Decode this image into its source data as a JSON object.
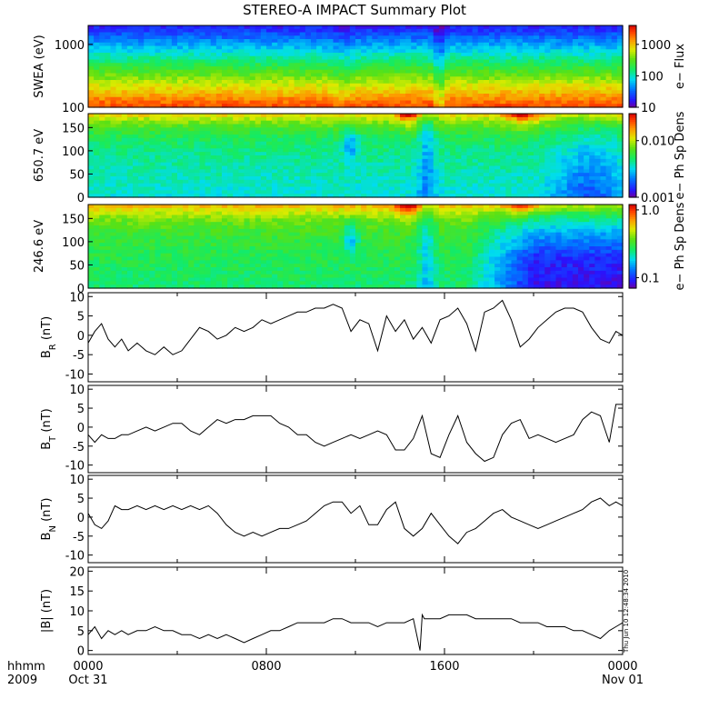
{
  "chart_data": {
    "type": "multi-panel",
    "title": "STEREO-A IMPACT Summary Plot",
    "x_axis": {
      "label_line1": "hhmm",
      "label_line2": "2009",
      "ticks": [
        {
          "time_h": 0,
          "line1": "0000",
          "line2": "Oct 31"
        },
        {
          "time_h": 8,
          "line1": "0800",
          "line2": ""
        },
        {
          "time_h": 16,
          "line1": "1600",
          "line2": ""
        },
        {
          "time_h": 24,
          "line1": "0000",
          "line2": "Nov 01"
        }
      ],
      "range_h": [
        0,
        24
      ]
    },
    "stamp": "Thu Jun 10 12:48:34 2010",
    "spectrograms": [
      {
        "type": "heatmap",
        "ylabel": "SWEA (eV)",
        "y_scale": "log",
        "ylim": [
          100,
          2000
        ],
        "yticks": [
          "100",
          "1000"
        ],
        "colorbar_label": "e− Flux",
        "colorbar_ticks": [
          "10",
          "100",
          "1000"
        ],
        "colorbar_range": [
          10,
          4000
        ],
        "colorbar_scale": "log"
      },
      {
        "type": "heatmap",
        "ylabel": "650.7 eV",
        "y_scale": "linear",
        "ylim": [
          0,
          180
        ],
        "yticks": [
          "0",
          "50",
          "100",
          "150"
        ],
        "colorbar_label": "e− Ph Sp Dens",
        "colorbar_ticks": [
          "0.001",
          "0.010"
        ],
        "colorbar_range": [
          0.001,
          0.03
        ],
        "colorbar_scale": "log"
      },
      {
        "type": "heatmap",
        "ylabel": "246.6 eV",
        "y_scale": "linear",
        "ylim": [
          0,
          180
        ],
        "yticks": [
          "0",
          "50",
          "100",
          "150"
        ],
        "colorbar_label": "e− Ph Sp Dens",
        "colorbar_ticks": [
          "0.1",
          "1.0"
        ],
        "colorbar_range": [
          0.07,
          1.2
        ],
        "colorbar_scale": "log"
      }
    ],
    "lines": [
      {
        "type": "line",
        "ylabel_main": "B",
        "ylabel_sub": "R",
        "ylabel_unit": " (nT)",
        "ylim": [
          -12,
          11
        ],
        "yticks": [
          "-10",
          "-5",
          "0",
          "5",
          "10"
        ],
        "x": [
          0,
          0.3,
          0.6,
          0.9,
          1.2,
          1.5,
          1.8,
          2.2,
          2.6,
          3.0,
          3.4,
          3.8,
          4.2,
          4.6,
          5.0,
          5.4,
          5.8,
          6.2,
          6.6,
          7.0,
          7.4,
          7.8,
          8.2,
          8.6,
          9.0,
          9.4,
          9.8,
          10.2,
          10.6,
          11.0,
          11.4,
          11.8,
          12.2,
          12.6,
          13.0,
          13.4,
          13.8,
          14.2,
          14.6,
          15.0,
          15.4,
          15.8,
          16.2,
          16.6,
          17.0,
          17.4,
          17.8,
          18.2,
          18.6,
          19.0,
          19.4,
          19.8,
          20.2,
          20.6,
          21.0,
          21.4,
          21.8,
          22.2,
          22.6,
          23.0,
          23.4,
          23.7,
          24.0
        ],
        "values": [
          -2,
          1,
          3,
          -1,
          -3,
          -1,
          -4,
          -2,
          -4,
          -5,
          -3,
          -5,
          -4,
          -1,
          2,
          1,
          -1,
          0,
          2,
          1,
          2,
          4,
          3,
          4,
          5,
          6,
          6,
          7,
          7,
          8,
          7,
          1,
          4,
          3,
          -4,
          5,
          1,
          4,
          -1,
          2,
          -2,
          4,
          5,
          7,
          3,
          -4,
          6,
          7,
          9,
          4,
          -3,
          -1,
          2,
          4,
          6,
          7,
          7,
          6,
          2,
          -1,
          -2,
          1,
          0
        ]
      },
      {
        "type": "line",
        "ylabel_main": "B",
        "ylabel_sub": "T",
        "ylabel_unit": " (nT)",
        "ylim": [
          -12,
          11
        ],
        "yticks": [
          "-10",
          "-5",
          "0",
          "5",
          "10"
        ],
        "x": [
          0,
          0.3,
          0.6,
          0.9,
          1.2,
          1.5,
          1.8,
          2.2,
          2.6,
          3.0,
          3.4,
          3.8,
          4.2,
          4.6,
          5.0,
          5.4,
          5.8,
          6.2,
          6.6,
          7.0,
          7.4,
          7.8,
          8.2,
          8.6,
          9.0,
          9.4,
          9.8,
          10.2,
          10.6,
          11.0,
          11.4,
          11.8,
          12.2,
          12.6,
          13.0,
          13.4,
          13.8,
          14.2,
          14.6,
          15.0,
          15.4,
          15.8,
          16.2,
          16.6,
          17.0,
          17.4,
          17.8,
          18.2,
          18.6,
          19.0,
          19.4,
          19.8,
          20.2,
          20.6,
          21.0,
          21.4,
          21.8,
          22.2,
          22.6,
          23.0,
          23.4,
          23.7,
          24.0
        ],
        "values": [
          -2,
          -4,
          -2,
          -3,
          -3,
          -2,
          -2,
          -1,
          0,
          -1,
          0,
          1,
          1,
          -1,
          -2,
          0,
          2,
          1,
          2,
          2,
          3,
          3,
          3,
          1,
          0,
          -2,
          -2,
          -4,
          -5,
          -4,
          -3,
          -2,
          -3,
          -2,
          -1,
          -2,
          -6,
          -6,
          -3,
          3,
          -7,
          -8,
          -2,
          3,
          -4,
          -7,
          -9,
          -8,
          -2,
          1,
          2,
          -3,
          -2,
          -3,
          -4,
          -3,
          -2,
          2,
          4,
          3,
          -4,
          6,
          6
        ]
      },
      {
        "type": "line",
        "ylabel_main": "B",
        "ylabel_sub": "N",
        "ylabel_unit": " (nT)",
        "ylim": [
          -12,
          11
        ],
        "yticks": [
          "-10",
          "-5",
          "0",
          "5",
          "10"
        ],
        "x": [
          0,
          0.3,
          0.6,
          0.9,
          1.2,
          1.5,
          1.8,
          2.2,
          2.6,
          3.0,
          3.4,
          3.8,
          4.2,
          4.6,
          5.0,
          5.4,
          5.8,
          6.2,
          6.6,
          7.0,
          7.4,
          7.8,
          8.2,
          8.6,
          9.0,
          9.4,
          9.8,
          10.2,
          10.6,
          11.0,
          11.4,
          11.8,
          12.2,
          12.6,
          13.0,
          13.4,
          13.8,
          14.2,
          14.6,
          15.0,
          15.4,
          15.8,
          16.2,
          16.6,
          17.0,
          17.4,
          17.8,
          18.2,
          18.6,
          19.0,
          19.4,
          19.8,
          20.2,
          20.6,
          21.0,
          21.4,
          21.8,
          22.2,
          22.6,
          23.0,
          23.4,
          23.7,
          24.0
        ],
        "values": [
          1,
          -2,
          -3,
          -1,
          3,
          2,
          2,
          3,
          2,
          3,
          2,
          3,
          2,
          3,
          2,
          3,
          1,
          -2,
          -4,
          -5,
          -4,
          -5,
          -4,
          -3,
          -3,
          -2,
          -1,
          1,
          3,
          4,
          4,
          1,
          3,
          -2,
          -2,
          2,
          4,
          -3,
          -5,
          -3,
          1,
          -2,
          -5,
          -7,
          -4,
          -3,
          -1,
          1,
          2,
          0,
          -1,
          -2,
          -3,
          -2,
          -1,
          0,
          1,
          2,
          4,
          5,
          3,
          4,
          3
        ]
      },
      {
        "type": "line",
        "ylabel_main": "|B| (nT)",
        "ylabel_sub": "",
        "ylabel_unit": "",
        "ylim": [
          -1,
          21
        ],
        "yticks": [
          "0",
          "5",
          "10",
          "15",
          "20"
        ],
        "x": [
          0,
          0.3,
          0.6,
          0.9,
          1.2,
          1.5,
          1.8,
          2.2,
          2.6,
          3.0,
          3.4,
          3.8,
          4.2,
          4.6,
          5.0,
          5.4,
          5.8,
          6.2,
          6.6,
          7.0,
          7.4,
          7.8,
          8.2,
          8.6,
          9.0,
          9.4,
          9.8,
          10.2,
          10.6,
          11.0,
          11.4,
          11.8,
          12.2,
          12.6,
          13.0,
          13.4,
          13.8,
          14.2,
          14.6,
          14.9,
          15.0,
          15.1,
          15.4,
          15.8,
          16.2,
          16.6,
          17.0,
          17.4,
          17.8,
          18.2,
          18.6,
          19.0,
          19.4,
          19.8,
          20.2,
          20.6,
          21.0,
          21.4,
          21.8,
          22.2,
          22.6,
          23.0,
          23.4,
          23.7,
          24.0
        ],
        "values": [
          4,
          6,
          3,
          5,
          4,
          5,
          4,
          5,
          5,
          6,
          5,
          5,
          4,
          4,
          3,
          4,
          3,
          4,
          3,
          2,
          3,
          4,
          5,
          5,
          6,
          7,
          7,
          7,
          7,
          8,
          8,
          7,
          7,
          7,
          6,
          7,
          7,
          7,
          8,
          0,
          9,
          8,
          8,
          8,
          9,
          9,
          9,
          8,
          8,
          8,
          8,
          8,
          7,
          7,
          7,
          6,
          6,
          6,
          5,
          5,
          4,
          3,
          5,
          6,
          7
        ]
      }
    ]
  }
}
